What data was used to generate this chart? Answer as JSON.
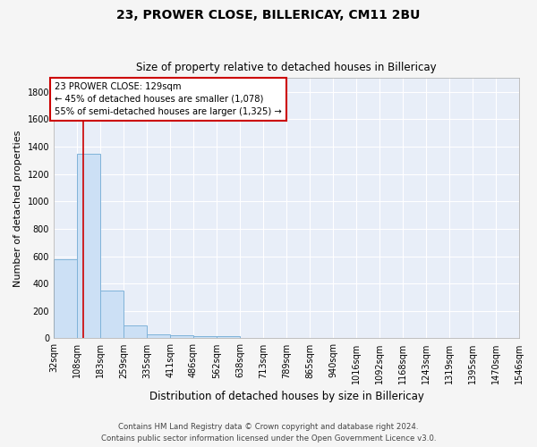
{
  "title1": "23, PROWER CLOSE, BILLERICAY, CM11 2BU",
  "title2": "Size of property relative to detached houses in Billericay",
  "xlabel": "Distribution of detached houses by size in Billericay",
  "ylabel": "Number of detached properties",
  "bin_edges": [
    32,
    108,
    183,
    259,
    335,
    411,
    486,
    562,
    638,
    713,
    789,
    865,
    940,
    1016,
    1092,
    1168,
    1243,
    1319,
    1395,
    1470,
    1546
  ],
  "bar_heights": [
    580,
    1350,
    350,
    95,
    30,
    25,
    15,
    15,
    0,
    0,
    0,
    0,
    0,
    0,
    0,
    0,
    0,
    0,
    0,
    0
  ],
  "bar_color": "#cce0f5",
  "bar_edge_color": "#7fb3d9",
  "background_color": "#e8eef8",
  "grid_color": "#ffffff",
  "red_line_x": 129,
  "annotation_line1": "23 PROWER CLOSE: 129sqm",
  "annotation_line2": "← 45% of detached houses are smaller (1,078)",
  "annotation_line3": "55% of semi-detached houses are larger (1,325) →",
  "annotation_box_color": "#ffffff",
  "annotation_border_color": "#cc0000",
  "ylim": [
    0,
    1900
  ],
  "yticks": [
    0,
    200,
    400,
    600,
    800,
    1000,
    1200,
    1400,
    1600,
    1800
  ],
  "figure_bg": "#f5f5f5",
  "footer1": "Contains HM Land Registry data © Crown copyright and database right 2024.",
  "footer2": "Contains public sector information licensed under the Open Government Licence v3.0."
}
